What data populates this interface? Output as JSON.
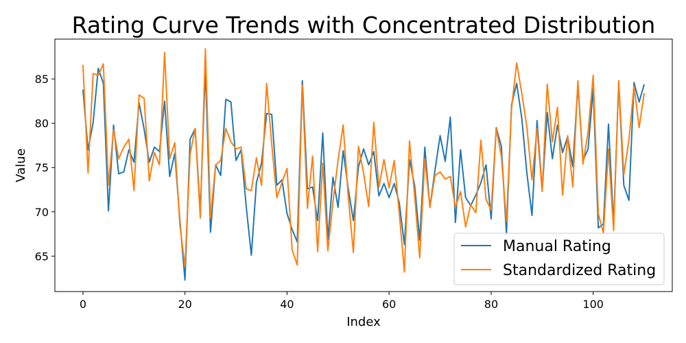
{
  "chart_data": {
    "type": "line",
    "title": "Rating Curve Trends with Concentrated Distribution",
    "xlabel": "Index",
    "ylabel": "Value",
    "xlim": [
      -5.5,
      115.5
    ],
    "ylim": [
      61,
      89.5
    ],
    "xticks": [
      0,
      20,
      40,
      60,
      80,
      100
    ],
    "yticks": [
      65,
      70,
      75,
      80,
      85
    ],
    "grid": false,
    "legend_position": "lower-right",
    "series": [
      {
        "name": "Manual Rating",
        "color": "#1f77b4",
        "values": [
          83.8,
          77.0,
          80.1,
          86.2,
          84.5,
          70.1,
          79.8,
          74.3,
          74.5,
          77.0,
          75.6,
          82.3,
          79.3,
          75.6,
          77.3,
          76.8,
          82.5,
          74.0,
          76.6,
          69.0,
          62.3,
          78.2,
          79.4,
          70.0,
          86.3,
          67.7,
          75.3,
          74.1,
          82.7,
          82.4,
          75.8,
          77.0,
          70.6,
          65.1,
          73.3,
          75.5,
          81.1,
          81.0,
          73.0,
          73.6,
          69.8,
          68.0,
          66.6,
          84.8,
          72.6,
          72.8,
          69.0,
          78.9,
          66.9,
          73.9,
          70.5,
          76.9,
          72.6,
          69.0,
          75.1,
          77.1,
          75.3,
          76.8,
          71.8,
          73.2,
          71.6,
          73.2,
          71.0,
          66.3,
          75.9,
          73.0,
          66.8,
          77.3,
          70.5,
          74.7,
          78.6,
          75.7,
          80.7,
          68.8,
          77.0,
          71.6,
          70.7,
          71.9,
          73.3,
          75.3,
          69.2,
          79.5,
          77.4,
          67.5,
          82.1,
          84.5,
          80.6,
          74.4,
          69.6,
          80.3,
          72.4,
          81.2,
          76.0,
          79.8,
          76.7,
          78.5,
          75.1,
          84.3,
          75.8,
          77.1,
          83.9,
          68.2,
          68.6,
          79.9,
          68.5,
          84.6,
          73.0,
          71.3,
          84.6,
          82.4,
          84.4
        ]
      },
      {
        "name": "Standardized Rating",
        "color": "#ff7f0e",
        "values": [
          86.6,
          74.4,
          85.6,
          85.4,
          86.7,
          73.0,
          79.3,
          76.0,
          77.3,
          78.2,
          72.4,
          83.2,
          82.8,
          73.5,
          76.7,
          75.3,
          88.0,
          76.0,
          77.8,
          68.5,
          63.8,
          76.5,
          79.4,
          69.3,
          88.4,
          69.3,
          75.3,
          75.8,
          79.4,
          77.9,
          77.1,
          77.3,
          72.6,
          72.4,
          76.1,
          73.0,
          84.5,
          77.6,
          71.6,
          73.3,
          74.9,
          65.7,
          64.0,
          84.3,
          70.4,
          76.3,
          65.5,
          75.5,
          65.6,
          71.1,
          75.8,
          79.8,
          71.7,
          65.4,
          77.4,
          74.4,
          70.6,
          80.1,
          72.8,
          75.9,
          72.7,
          75.8,
          69.8,
          63.2,
          78.0,
          71.9,
          64.8,
          76.0,
          70.5,
          74.1,
          74.5,
          73.7,
          74.0,
          70.5,
          72.3,
          68.3,
          70.8,
          69.9,
          78.1,
          71.4,
          70.2,
          79.4,
          76.3,
          68.9,
          81.7,
          86.8,
          83.4,
          79.6,
          73.6,
          79.4,
          72.3,
          84.4,
          77.9,
          81.8,
          71.9,
          78.6,
          72.8,
          84.8,
          75.4,
          79.0,
          85.4,
          69.8,
          67.6,
          77.1,
          67.9,
          84.8,
          74.2,
          78.1,
          84.2,
          79.5,
          83.4
        ]
      }
    ]
  }
}
